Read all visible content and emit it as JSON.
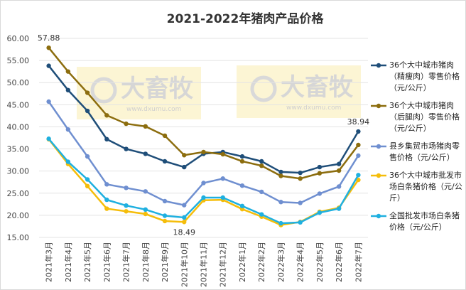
{
  "chart_data": {
    "type": "line",
    "title": "2021-2022年猪肉产品价格",
    "watermark": {
      "text": "大畜牧",
      "url": "www.dxumu.com"
    },
    "categories": [
      "2021年3月",
      "2021年4月",
      "2021年5月",
      "2021年6月",
      "2021年7月",
      "2021年8月",
      "2021年9月",
      "2021年10月",
      "2021年11月",
      "2021年12月",
      "2022年1月",
      "2022年2月",
      "2022年3月",
      "2022年4月",
      "2022年5月",
      "2022年6月",
      "2022年7月"
    ],
    "ylim": [
      15,
      60
    ],
    "yticks": [
      {
        "value": 15,
        "label": "15.00"
      },
      {
        "value": 20,
        "label": "20.00"
      },
      {
        "value": 25,
        "label": "25.00"
      },
      {
        "value": 30,
        "label": "30.00"
      },
      {
        "value": 35,
        "label": "35.00"
      },
      {
        "value": 40,
        "label": "40.00"
      },
      {
        "value": 45,
        "label": "45.00"
      },
      {
        "value": 50,
        "label": "50.00"
      },
      {
        "value": 55,
        "label": "55.00"
      },
      {
        "value": 60,
        "label": "60.00"
      }
    ],
    "grid": true,
    "legend": "right",
    "series": [
      {
        "name": "36个大中城市猪肉（精瘦肉）零售价格（元/公斤）",
        "color": "#1f4e79",
        "values": [
          53.8,
          48.3,
          43.6,
          37.2,
          35.0,
          33.9,
          32.2,
          30.9,
          33.9,
          34.3,
          33.3,
          32.2,
          29.8,
          29.6,
          30.9,
          31.6,
          38.94
        ],
        "value_labels": [
          null,
          null,
          null,
          null,
          null,
          null,
          null,
          null,
          null,
          null,
          null,
          null,
          null,
          null,
          null,
          null,
          "38.94"
        ]
      },
      {
        "name": "36个大中城市猪肉（后腿肉）零售价格（元/公斤）",
        "color": "#8c6d0e",
        "values": [
          57.88,
          52.5,
          47.7,
          42.6,
          40.7,
          40.1,
          38.0,
          33.6,
          34.3,
          33.8,
          32.2,
          31.2,
          28.9,
          28.3,
          29.5,
          30.1,
          35.9
        ],
        "value_labels": [
          "57.88",
          null,
          null,
          null,
          null,
          null,
          null,
          null,
          null,
          null,
          null,
          null,
          null,
          null,
          null,
          null,
          null
        ]
      },
      {
        "name": "县乡集贸市场猪肉零售价格（元/公斤）",
        "color": "#6f8fd0",
        "values": [
          45.7,
          39.4,
          33.3,
          27.0,
          26.2,
          25.4,
          23.2,
          22.3,
          27.3,
          28.3,
          26.7,
          25.3,
          23.0,
          22.8,
          24.9,
          26.5,
          33.5
        ]
      },
      {
        "name": "36个大中城市批发市场白条猪价格（元/公斤）",
        "color": "#f5bd0a",
        "values": [
          37.2,
          31.6,
          26.6,
          21.5,
          20.9,
          20.3,
          18.7,
          18.49,
          23.4,
          23.5,
          21.4,
          19.7,
          17.8,
          18.5,
          20.8,
          21.7,
          28.0
        ],
        "value_labels": [
          null,
          null,
          null,
          null,
          null,
          null,
          null,
          "18.49",
          null,
          null,
          null,
          null,
          null,
          null,
          null,
          null,
          null
        ]
      },
      {
        "name": "全国批发市场白条猪价格（元/公斤）",
        "color": "#1fb0e0",
        "values": [
          37.3,
          32.1,
          28.1,
          23.5,
          22.2,
          21.3,
          19.9,
          19.5,
          24.0,
          24.0,
          22.1,
          20.2,
          18.2,
          18.4,
          20.6,
          21.5,
          29.1
        ]
      }
    ]
  }
}
